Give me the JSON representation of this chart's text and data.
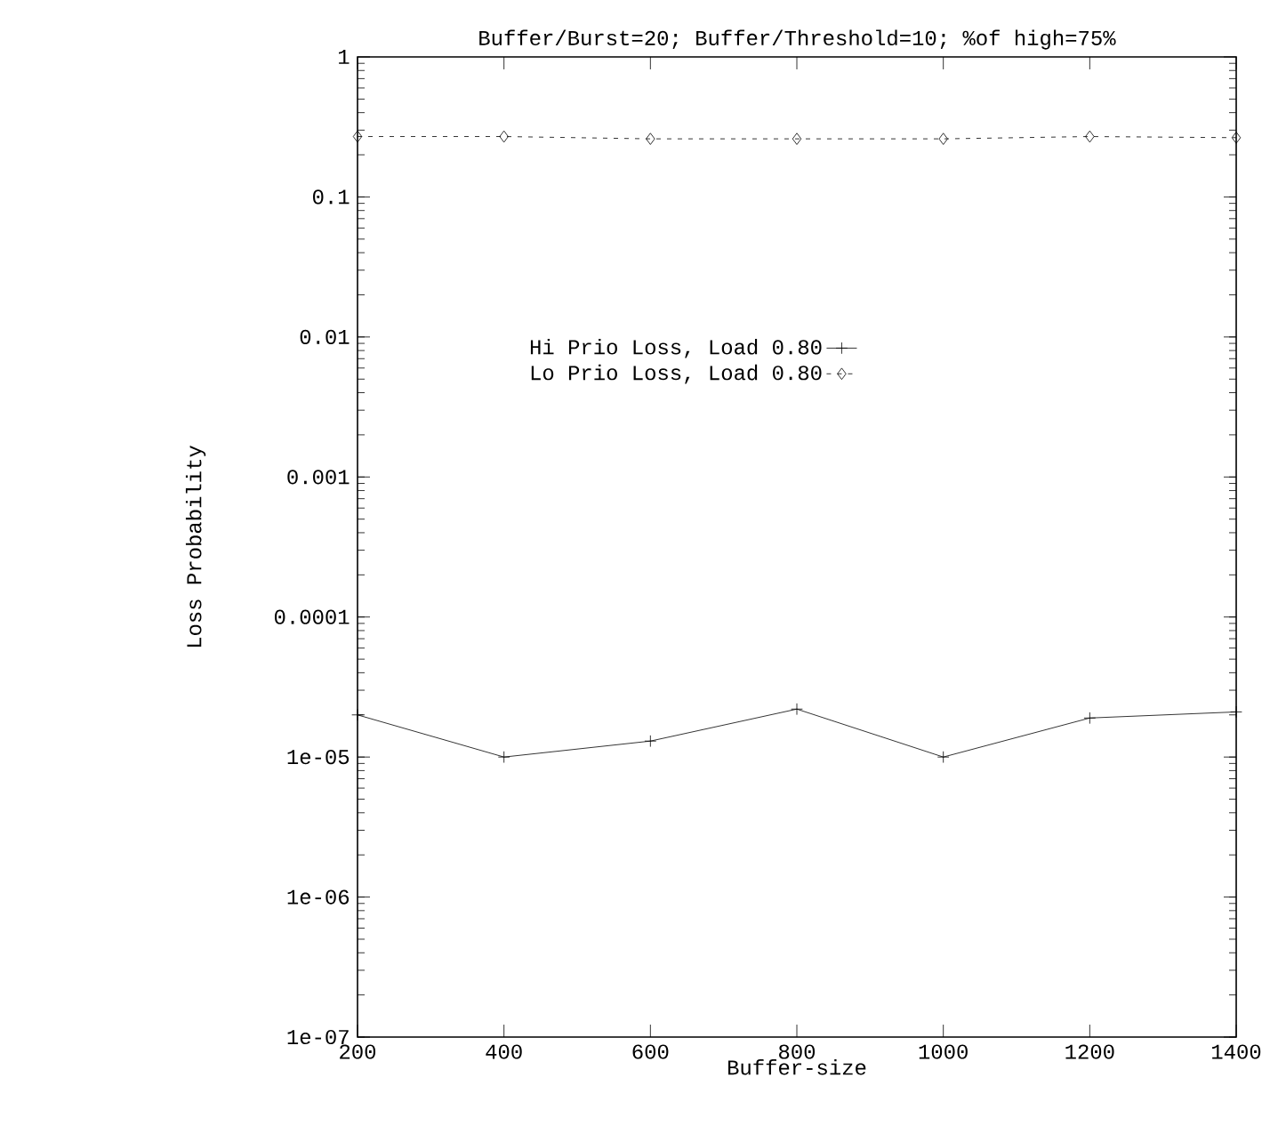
{
  "chart_data": {
    "type": "line",
    "title": "Buffer/Burst=20; Buffer/Threshold=10; %of high=75%",
    "xlabel": "Buffer-size",
    "ylabel": "Loss Probability",
    "x": [
      200,
      400,
      600,
      800,
      1000,
      1200,
      1400
    ],
    "series": [
      {
        "name": "Hi Prio Loss, Load 0.80",
        "color": "#000000",
        "marker": "cross",
        "line_style": "solid",
        "values": [
          2e-05,
          1e-05,
          1.3e-05,
          2.2e-05,
          1e-05,
          1.9e-05,
          2.1e-05
        ]
      },
      {
        "name": "Lo Prio Loss, Load 0.80",
        "color": "#000000",
        "marker": "diamond",
        "line_style": "dotted",
        "values": [
          0.27,
          0.27,
          0.26,
          0.26,
          0.26,
          0.27,
          0.265
        ]
      }
    ],
    "log": "y",
    "xlim": [
      200,
      1400
    ],
    "ylim": [
      1e-07,
      1
    ],
    "xticks": [
      200,
      400,
      600,
      800,
      1000,
      1200,
      1400
    ],
    "yticks": [
      {
        "value": 1e-07,
        "label": "1e-07"
      },
      {
        "value": 1e-06,
        "label": "1e-06"
      },
      {
        "value": 1e-05,
        "label": "1e-05"
      },
      0.0001,
      0.001,
      0.01,
      0.1,
      1
    ],
    "grid": false,
    "legend": "top"
  }
}
